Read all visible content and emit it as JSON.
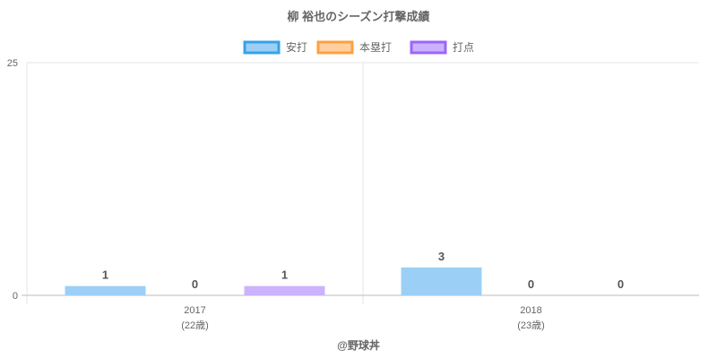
{
  "chart_data": {
    "type": "bar",
    "title": "柳 裕也のシーズン打撃成績",
    "categories": [
      "2017",
      "2018"
    ],
    "category_sublabels": [
      "(22歳)",
      "(23歳)"
    ],
    "series": [
      {
        "name": "安打",
        "values": [
          1,
          3
        ],
        "fill": "#9ccff5",
        "stroke": "#36a2eb"
      },
      {
        "name": "本塁打",
        "values": [
          0,
          0
        ],
        "fill": "#ffcf9f",
        "stroke": "#ff9f40"
      },
      {
        "name": "打点",
        "values": [
          1,
          0
        ],
        "fill": "#ccb2fd",
        "stroke": "#9966ff"
      }
    ],
    "ylim": [
      0,
      25
    ],
    "yticks": [
      "0",
      "25"
    ],
    "legend_position": "top",
    "grid": true,
    "watermark": "@野球丼"
  }
}
